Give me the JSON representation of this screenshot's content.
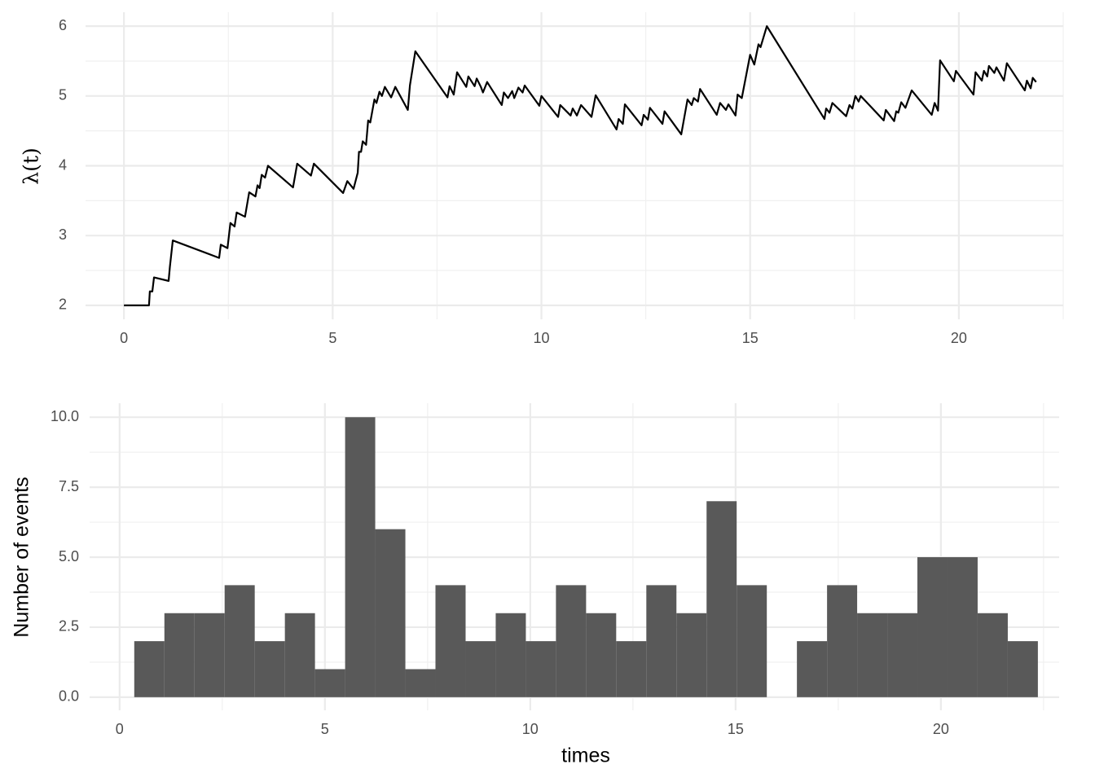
{
  "chart_data": [
    {
      "type": "line",
      "ylabel": "λ(t)",
      "color": "#000000",
      "grid": true,
      "xlim": [
        -0.92,
        22.5
      ],
      "ylim": [
        1.8,
        6.2
      ],
      "xticks": [
        0,
        5,
        10,
        15,
        20
      ],
      "yticks": [
        2,
        3,
        4,
        5,
        6
      ],
      "x": [
        0,
        0.6,
        0.62,
        0.68,
        0.72,
        1.07,
        1.1,
        1.17,
        2.28,
        2.32,
        2.48,
        2.55,
        2.65,
        2.7,
        2.9,
        3.0,
        3.15,
        3.2,
        3.25,
        3.3,
        3.38,
        3.45,
        4.05,
        4.15,
        4.48,
        4.55,
        5.25,
        5.35,
        5.5,
        5.6,
        5.63,
        5.68,
        5.72,
        5.8,
        5.85,
        5.9,
        6.0,
        6.05,
        6.12,
        6.18,
        6.25,
        6.4,
        6.5,
        6.8,
        6.85,
        6.98,
        7.75,
        7.8,
        7.9,
        7.98,
        8.2,
        8.25,
        8.4,
        8.45,
        8.55,
        8.6,
        8.7,
        9.05,
        9.1,
        9.2,
        9.3,
        9.35,
        9.45,
        9.55,
        9.6,
        9.95,
        10.0,
        10.4,
        10.45,
        10.7,
        10.75,
        10.85,
        10.95,
        11.2,
        11.3,
        11.8,
        11.85,
        11.95,
        12.0,
        12.4,
        12.45,
        12.55,
        12.6,
        12.9,
        12.95,
        13.35,
        13.5,
        13.6,
        13.65,
        13.75,
        13.8,
        14.2,
        14.28,
        14.42,
        14.48,
        14.65,
        14.7,
        14.8,
        15.0,
        15.1,
        15.2,
        15.25,
        15.4,
        16.78,
        16.82,
        16.9,
        16.97,
        17.3,
        17.38,
        17.45,
        17.52,
        17.6,
        17.65,
        18.2,
        18.25,
        18.45,
        18.5,
        18.55,
        18.62,
        18.72,
        18.87,
        19.35,
        19.42,
        19.5,
        19.55,
        19.88,
        19.93,
        20.35,
        20.4,
        20.55,
        20.6,
        20.68,
        20.72,
        20.85,
        20.9,
        21.08,
        21.15,
        21.58,
        21.63,
        21.72,
        21.77,
        21.85
      ],
      "values": [
        2.0,
        2.0,
        2.2,
        2.2,
        2.4,
        2.35,
        2.55,
        2.93,
        2.68,
        2.87,
        2.82,
        3.18,
        3.13,
        3.33,
        3.27,
        3.62,
        3.56,
        3.72,
        3.68,
        3.87,
        3.83,
        4.0,
        3.69,
        4.03,
        3.86,
        4.03,
        3.61,
        3.78,
        3.67,
        3.9,
        4.2,
        4.2,
        4.35,
        4.3,
        4.65,
        4.62,
        4.95,
        4.9,
        5.06,
        5.0,
        5.13,
        4.98,
        5.13,
        4.8,
        5.15,
        5.64,
        4.98,
        5.14,
        5.02,
        5.34,
        5.13,
        5.28,
        5.14,
        5.25,
        5.13,
        5.05,
        5.2,
        4.87,
        5.05,
        4.97,
        5.07,
        4.97,
        5.12,
        5.05,
        5.15,
        4.86,
        5.0,
        4.7,
        4.87,
        4.72,
        4.82,
        4.72,
        4.87,
        4.7,
        5.01,
        4.52,
        4.67,
        4.6,
        4.88,
        4.58,
        4.73,
        4.66,
        4.83,
        4.6,
        4.78,
        4.45,
        4.95,
        4.87,
        4.97,
        4.92,
        5.1,
        4.73,
        4.9,
        4.8,
        4.88,
        4.72,
        5.02,
        4.97,
        5.59,
        5.45,
        5.74,
        5.7,
        6.0,
        4.67,
        4.82,
        4.76,
        4.9,
        4.71,
        4.87,
        4.82,
        5.0,
        4.92,
        5.0,
        4.65,
        4.8,
        4.64,
        4.78,
        4.76,
        4.91,
        4.83,
        5.08,
        4.73,
        4.9,
        4.79,
        5.51,
        5.21,
        5.36,
        5.02,
        5.34,
        5.22,
        5.36,
        5.28,
        5.43,
        5.33,
        5.41,
        5.22,
        5.47,
        5.08,
        5.22,
        5.11,
        5.26,
        5.2
      ]
    },
    {
      "type": "histogram",
      "xlabel": "times",
      "ylabel": "Number of events",
      "color": "#595959",
      "grid": true,
      "xlim": [
        -0.73,
        22.88
      ],
      "ylim": [
        -0.47,
        10.5
      ],
      "xticks": [
        0,
        5,
        10,
        15,
        20
      ],
      "yticks": [
        {
          "value": 0,
          "label": "0.0"
        },
        {
          "value": 2.5,
          "label": "2.5"
        },
        {
          "value": 5,
          "label": "5.0"
        },
        {
          "value": 7.5,
          "label": "7.5"
        },
        {
          "value": 10,
          "label": "10.0"
        }
      ],
      "bins": [
        0.357,
        1.091,
        1.824,
        2.558,
        3.291,
        4.025,
        4.758,
        5.492,
        6.225,
        6.959,
        7.692,
        8.426,
        9.159,
        9.893,
        10.626,
        11.36,
        12.093,
        12.827,
        13.56,
        14.294,
        15.027,
        15.761,
        16.494,
        17.228,
        17.961,
        18.695,
        19.428,
        20.162,
        20.895,
        21.629,
        22.362
      ],
      "values": [
        2,
        3,
        3,
        4,
        2,
        3,
        1,
        10,
        6,
        1,
        4,
        2,
        3,
        2,
        4,
        3,
        2,
        4,
        3,
        7,
        4,
        0,
        2,
        4,
        3,
        3,
        5,
        5,
        3,
        2
      ]
    }
  ]
}
